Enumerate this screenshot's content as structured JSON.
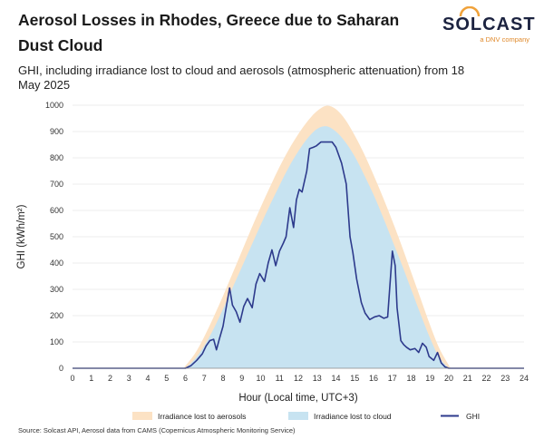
{
  "header": {
    "title": "Aerosol Losses in Rhodes, Greece due to Saharan Dust Cloud",
    "subtitle": "GHI, including irradiance lost to cloud and aerosols (atmospheric attenuation) from 18 May 2025"
  },
  "logo": {
    "word": "SOLCAST",
    "sub": "a DNV company",
    "icon": "sun-arc-logo-icon"
  },
  "source": "Source: Solcast API, Aerosol data from CAMS (Copernicus Atmospheric Monitoring Service)",
  "colors": {
    "aerosol": "#fce2c4",
    "cloud": "#c7e3f1",
    "ghi": "#2d3a8c"
  },
  "chart_data": {
    "type": "area",
    "xlabel": "Hour (Local time, UTC+3)",
    "ylabel": "GHI (kWh/m²)",
    "xlim": [
      0,
      24
    ],
    "ylim": [
      0,
      1000
    ],
    "xticks": [
      0,
      1,
      2,
      3,
      4,
      5,
      6,
      7,
      8,
      9,
      10,
      11,
      12,
      13,
      14,
      15,
      16,
      17,
      18,
      19,
      20,
      21,
      22,
      23,
      24
    ],
    "yticks": [
      0,
      100,
      200,
      300,
      400,
      500,
      600,
      700,
      800,
      900,
      1000
    ],
    "legend_position": "bottom",
    "series": [
      {
        "name": "Irradiance lost to aerosols",
        "kind": "area",
        "x": [
          5.9,
          6.5,
          7,
          7.5,
          8,
          8.5,
          9,
          9.5,
          10,
          10.5,
          11,
          11.5,
          12,
          12.5,
          13,
          13.5,
          14,
          14.5,
          15,
          15.5,
          16,
          16.5,
          17,
          17.5,
          18,
          18.5,
          19,
          19.5,
          20.1
        ],
        "y": [
          0,
          55,
          120,
          195,
          275,
          360,
          445,
          530,
          612,
          690,
          765,
          832,
          890,
          940,
          978,
          998,
          985,
          945,
          885,
          815,
          735,
          650,
          560,
          465,
          365,
          265,
          165,
          75,
          0
        ]
      },
      {
        "name": "Irradiance lost to cloud",
        "kind": "area",
        "x": [
          6,
          6.5,
          7,
          7.5,
          8,
          8.5,
          9,
          9.5,
          10,
          10.5,
          11,
          11.5,
          12,
          12.5,
          13,
          13.5,
          14,
          14.5,
          15,
          15.5,
          16,
          16.5,
          17,
          17.5,
          18,
          18.5,
          19,
          19.5,
          20
        ],
        "y": [
          0,
          35,
          85,
          150,
          225,
          305,
          385,
          465,
          545,
          622,
          695,
          765,
          825,
          875,
          910,
          920,
          900,
          860,
          805,
          735,
          660,
          575,
          485,
          395,
          300,
          205,
          115,
          40,
          0
        ]
      },
      {
        "name": "GHI",
        "kind": "line",
        "x": [
          0,
          6,
          6.3,
          6.6,
          6.9,
          7.1,
          7.3,
          7.5,
          7.65,
          7.8,
          8.0,
          8.2,
          8.35,
          8.5,
          8.7,
          8.9,
          9.1,
          9.3,
          9.55,
          9.75,
          9.95,
          10.2,
          10.4,
          10.6,
          10.8,
          11.0,
          11.2,
          11.35,
          11.55,
          11.75,
          11.9,
          12.05,
          12.2,
          12.45,
          12.6,
          12.8,
          12.95,
          13.2,
          13.45,
          13.8,
          14.0,
          14.3,
          14.55,
          14.75,
          14.9,
          15.1,
          15.35,
          15.55,
          15.8,
          16.05,
          16.3,
          16.55,
          16.75,
          17.0,
          17.15,
          17.25,
          17.45,
          17.6,
          17.75,
          17.95,
          18.2,
          18.4,
          18.6,
          18.8,
          18.95,
          19.2,
          19.4,
          19.6,
          19.8,
          20.0,
          24
        ],
        "y": [
          0,
          0,
          10,
          30,
          55,
          85,
          105,
          110,
          70,
          110,
          160,
          245,
          305,
          240,
          215,
          175,
          235,
          265,
          230,
          320,
          360,
          330,
          400,
          450,
          390,
          445,
          475,
          500,
          610,
          535,
          640,
          680,
          670,
          750,
          835,
          840,
          845,
          860,
          860,
          860,
          840,
          780,
          700,
          500,
          440,
          340,
          250,
          210,
          185,
          195,
          200,
          190,
          195,
          445,
          390,
          230,
          105,
          90,
          80,
          70,
          75,
          60,
          95,
          80,
          45,
          30,
          60,
          20,
          5,
          0,
          0
        ]
      }
    ]
  }
}
